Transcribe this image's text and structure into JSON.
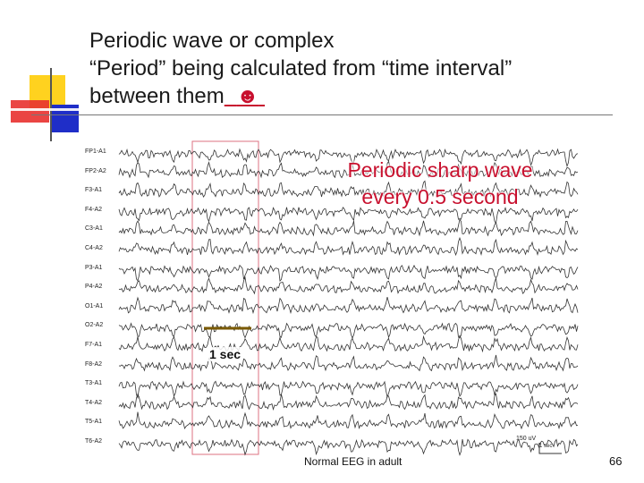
{
  "slide": {
    "title_lines": [
      "Periodic wave or complex",
      "“Period” being calculated from “time interval”",
      "between them"
    ],
    "smiley": "☻",
    "annotation_lines": [
      "Periodic sharp wave",
      "every 0.5 second"
    ],
    "scale_time": "1 sec",
    "scale_voltage": "150 uV",
    "scale_time_small": "1 sec",
    "caption": "Normal EEG in adult",
    "page_number": "66",
    "accent_color": "#c8102e",
    "deco_colors": {
      "yellow": "#ffd21f",
      "red": "#e8312f",
      "blue": "#1f2ec8"
    }
  },
  "eeg": {
    "channels": [
      "FP1-A1",
      "FP2-A2",
      "F3-A1",
      "F4-A2",
      "C3-A1",
      "C4-A2",
      "P3-A1",
      "P4-A2",
      "O1-A1",
      "O2-A2",
      "F7-A1",
      "F8-A2",
      "T3-A1",
      "T4-A2",
      "T5-A1",
      "T6-A2"
    ],
    "periodic_interval_sec": 0.5
  }
}
